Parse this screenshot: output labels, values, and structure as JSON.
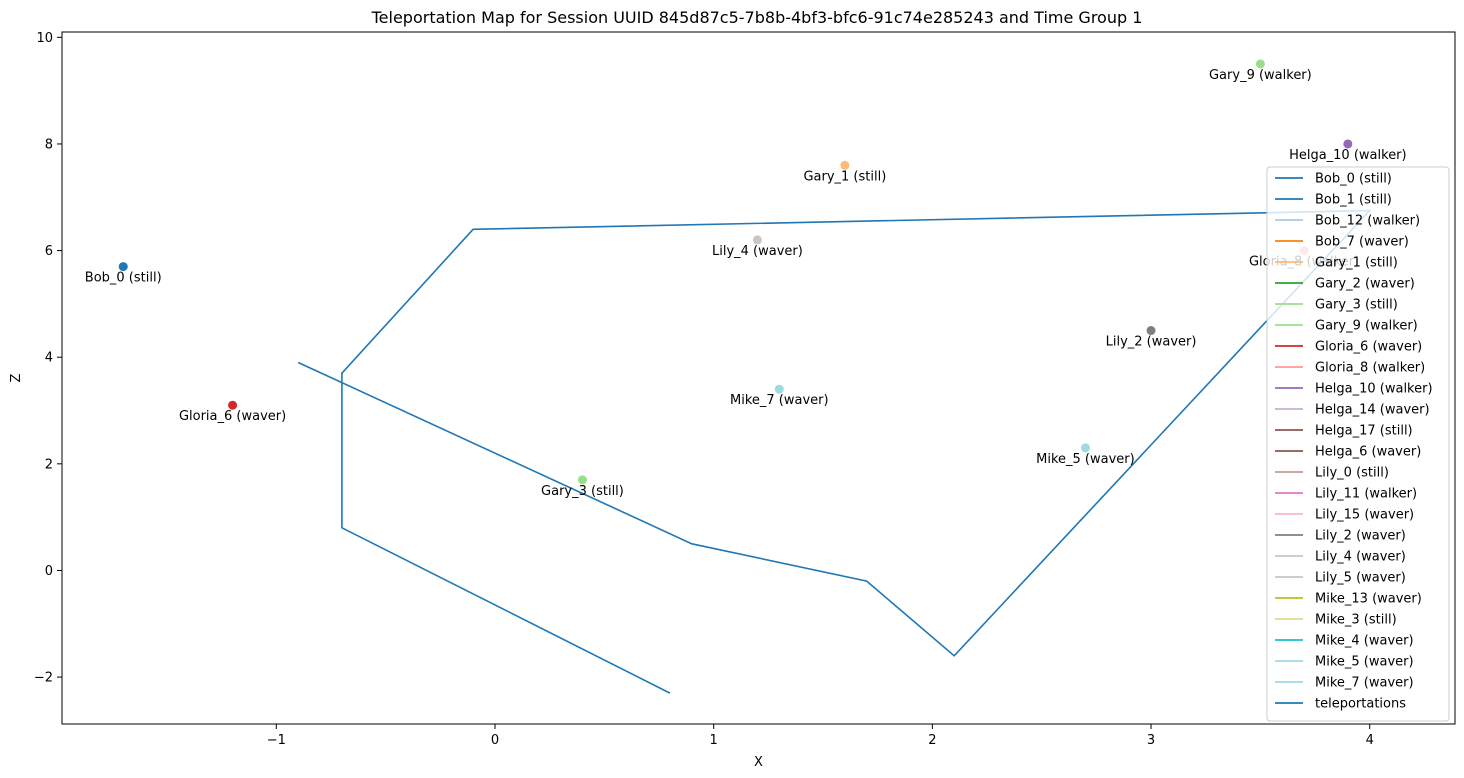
{
  "chart_data": {
    "type": "scatter",
    "title": "Teleportation Map for Session UUID 845d87c5-7b8b-4bf3-bfc6-91c74e285243 and Time Group 1",
    "xlabel": "X",
    "ylabel": "Z",
    "xlim": [
      -1.98,
      4.39
    ],
    "ylim": [
      -2.88,
      10.1
    ],
    "xticks": [
      -1,
      0,
      1,
      2,
      3,
      4
    ],
    "yticks": [
      -2,
      0,
      2,
      4,
      6,
      8,
      10
    ],
    "xtick_labels": [
      "−1",
      "0",
      "1",
      "2",
      "3",
      "4"
    ],
    "ytick_labels": [
      "−2",
      "0",
      "2",
      "4",
      "6",
      "8",
      "10"
    ],
    "legend_position": "right",
    "points": [
      {
        "label": "Bob_0 (still)",
        "x": -1.7,
        "z": 5.7,
        "color": "#1f77b4"
      },
      {
        "label": "Gary_1 (still)",
        "x": 1.6,
        "z": 7.6,
        "color": "#ffbb78"
      },
      {
        "label": "Gary_9 (walker)",
        "x": 3.5,
        "z": 9.5,
        "color": "#98df8a"
      },
      {
        "label": "Helga_10 (walker)",
        "x": 3.9,
        "z": 8.0,
        "color": "#9467bd"
      },
      {
        "label": "Lily_4 (waver)",
        "x": 1.2,
        "z": 6.2,
        "color": "#c7c7c7"
      },
      {
        "label": "Gloria_8 (walker)",
        "x": 3.7,
        "z": 6.0,
        "color": "#ff9896"
      },
      {
        "label": "Lily_2 (waver)",
        "x": 3.0,
        "z": 4.5,
        "color": "#7f7f7f"
      },
      {
        "label": "Mike_7 (waver)",
        "x": 1.3,
        "z": 3.4,
        "color": "#9edae5"
      },
      {
        "label": "Gloria_6 (waver)",
        "x": -1.2,
        "z": 3.1,
        "color": "#d62728"
      },
      {
        "label": "Mike_5 (waver)",
        "x": 2.7,
        "z": 2.3,
        "color": "#9edae5"
      },
      {
        "label": "Gary_3 (still)",
        "x": 0.4,
        "z": 1.7,
        "color": "#98df8a"
      }
    ],
    "teleportation_path": {
      "name": "teleportations",
      "color": "#1f77b4",
      "x": [
        0.8,
        -0.7,
        -0.7,
        -0.1,
        4.0,
        2.1,
        1.7,
        0.9,
        -0.9
      ],
      "z": [
        -2.3,
        0.8,
        3.7,
        6.4,
        6.75,
        -1.6,
        -0.2,
        0.5,
        3.9
      ]
    },
    "legend": [
      {
        "label": "Bob_0 (still)",
        "color": "#1f77b4"
      },
      {
        "label": "Bob_1 (still)",
        "color": "#1f77b4"
      },
      {
        "label": "Bob_12 (walker)",
        "color": "#aec7e8"
      },
      {
        "label": "Bob_7 (waver)",
        "color": "#ff7f0e"
      },
      {
        "label": "Gary_1 (still)",
        "color": "#ffbb78"
      },
      {
        "label": "Gary_2 (waver)",
        "color": "#2ca02c"
      },
      {
        "label": "Gary_3 (still)",
        "color": "#98df8a"
      },
      {
        "label": "Gary_9 (walker)",
        "color": "#98df8a"
      },
      {
        "label": "Gloria_6 (waver)",
        "color": "#d62728"
      },
      {
        "label": "Gloria_8 (walker)",
        "color": "#ff9896"
      },
      {
        "label": "Helga_10 (walker)",
        "color": "#9467bd"
      },
      {
        "label": "Helga_14 (waver)",
        "color": "#c5b0d5"
      },
      {
        "label": "Helga_17 (still)",
        "color": "#8c564b"
      },
      {
        "label": "Helga_6 (waver)",
        "color": "#8c564b"
      },
      {
        "label": "Lily_0 (still)",
        "color": "#c49c94"
      },
      {
        "label": "Lily_11 (walker)",
        "color": "#e377c2"
      },
      {
        "label": "Lily_15 (waver)",
        "color": "#f7b6d2"
      },
      {
        "label": "Lily_2 (waver)",
        "color": "#7f7f7f"
      },
      {
        "label": "Lily_4 (waver)",
        "color": "#c7c7c7"
      },
      {
        "label": "Lily_5 (waver)",
        "color": "#c7c7c7"
      },
      {
        "label": "Mike_13 (waver)",
        "color": "#bcbd22"
      },
      {
        "label": "Mike_3 (still)",
        "color": "#dbdb8d"
      },
      {
        "label": "Mike_4 (waver)",
        "color": "#17becf"
      },
      {
        "label": "Mike_5 (waver)",
        "color": "#9edae5"
      },
      {
        "label": "Mike_7 (waver)",
        "color": "#9edae5"
      },
      {
        "label": "teleportations",
        "color": "#1f77b4"
      }
    ]
  }
}
